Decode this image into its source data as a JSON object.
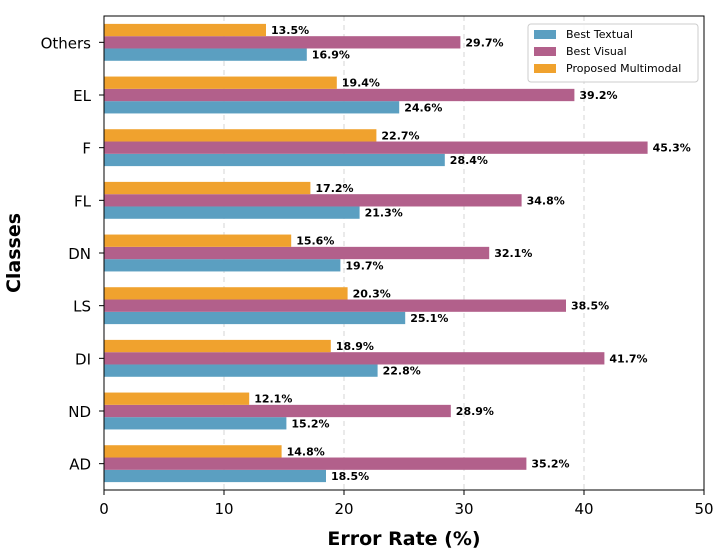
{
  "chart_data": {
    "type": "bar",
    "orientation": "horizontal",
    "categories": [
      "AD",
      "ND",
      "DI",
      "LS",
      "DN",
      "FL",
      "F",
      "EL",
      "Others"
    ],
    "series": [
      {
        "name": "Best Textual",
        "color": "#5b9fc1",
        "values": [
          18.5,
          15.2,
          22.8,
          25.1,
          19.7,
          21.3,
          28.4,
          24.6,
          16.9
        ],
        "labels": [
          "18.5%",
          "15.2%",
          "22.8%",
          "25.1%",
          "19.7%",
          "21.3%",
          "28.4%",
          "24.6%",
          "16.9%"
        ]
      },
      {
        "name": "Best Visual",
        "color": "#b2608b",
        "values": [
          35.2,
          28.9,
          41.7,
          38.5,
          32.1,
          34.8,
          45.3,
          39.2,
          29.7
        ],
        "labels": [
          "35.2%",
          "28.9%",
          "41.7%",
          "38.5%",
          "32.1%",
          "34.8%",
          "45.3%",
          "39.2%",
          "29.7%"
        ]
      },
      {
        "name": "Proposed Multimodal",
        "color": "#f0a22e",
        "values": [
          14.8,
          12.1,
          18.9,
          20.3,
          15.6,
          17.2,
          22.7,
          19.4,
          13.5
        ],
        "labels": [
          "14.8%",
          "12.1%",
          "18.9%",
          "20.3%",
          "15.6%",
          "17.2%",
          "22.7%",
          "19.4%",
          "13.5%"
        ]
      }
    ],
    "xlabel": "Error Rate (%)",
    "ylabel": "Classes",
    "xlim": [
      0,
      50
    ],
    "xticks": [
      "0",
      "10",
      "20",
      "30",
      "40",
      "50"
    ],
    "grid": "vertical dashed",
    "legend_position": "top-right"
  }
}
